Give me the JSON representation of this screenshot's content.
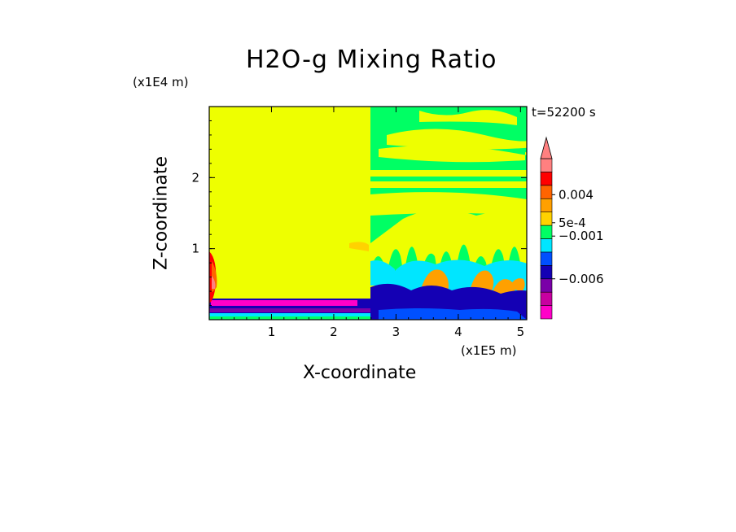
{
  "chart_data": {
    "type": "heatmap",
    "title": "H2O-g Mixing Ratio",
    "xlabel": "X-coordinate",
    "ylabel": "Z-coordinate",
    "x_unit_label": "(x1E5 m)",
    "z_unit_label": "(x1E4 m)",
    "timestamp": "t=52200 s",
    "xlim": [
      0,
      5.1
    ],
    "ylim": [
      0,
      3.0
    ],
    "x_ticks": [
      {
        "value": 1,
        "label": "1"
      },
      {
        "value": 2,
        "label": "2"
      },
      {
        "value": 3,
        "label": "3"
      },
      {
        "value": 4,
        "label": "4"
      },
      {
        "value": 5,
        "label": "5"
      }
    ],
    "y_ticks": [
      {
        "value": 1,
        "label": "1"
      },
      {
        "value": 2,
        "label": "2"
      }
    ],
    "colorbar": {
      "colors": [
        "#ff00c8",
        "#c800a0",
        "#7a00a8",
        "#1400b4",
        "#0050ff",
        "#00e6ff",
        "#00ff64",
        "#ffd200",
        "#ffa000",
        "#ff6400",
        "#ff0000",
        "#ff8080"
      ],
      "tick_labels": [
        {
          "label": "0.004",
          "level": 9.3
        },
        {
          "label": "5e-4",
          "level": 7.2
        },
        {
          "label": "−0.001",
          "level": 6.2
        },
        {
          "label": "−0.006",
          "level": 3.0
        }
      ],
      "extend": "max"
    },
    "regions": [
      {
        "name": "upper-fill",
        "color": "#eeff00"
      },
      {
        "name": "left-column-background",
        "color": "#eeff00"
      },
      {
        "name": "green-band",
        "color": "#00ff64"
      },
      {
        "name": "cyan-pocket",
        "color": "#00e6ff"
      },
      {
        "name": "orange-plume",
        "color": "#ffa000"
      },
      {
        "name": "blue-lower-layer",
        "color": "#1400b4"
      },
      {
        "name": "magenta-surface-band",
        "color": "#ff00c8"
      },
      {
        "name": "red-left-edge",
        "color": "#ff0000"
      }
    ]
  }
}
